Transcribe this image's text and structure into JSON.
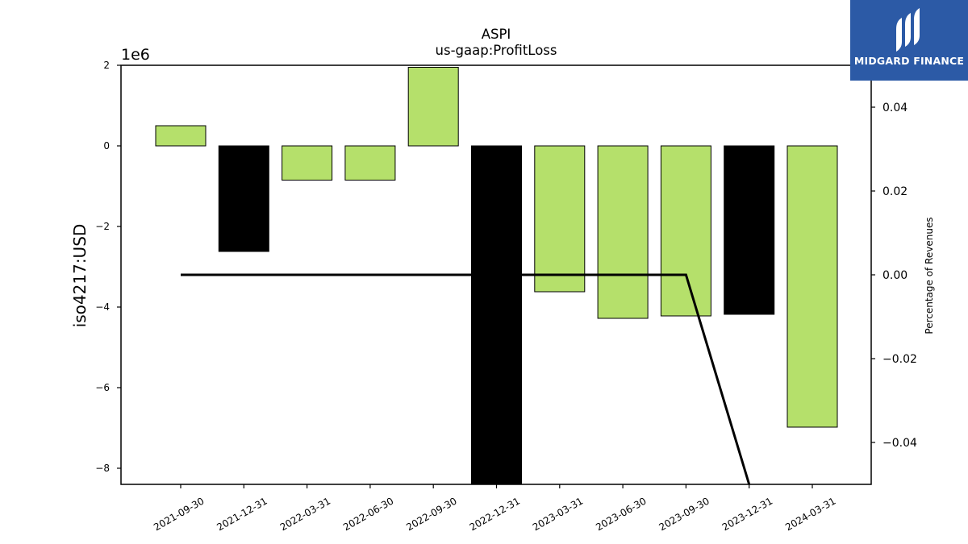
{
  "chart_data": {
    "type": "bar",
    "title": "ASPI",
    "subtitle": "us-gaap:ProfitLoss",
    "ylabel": "iso4217:USD",
    "y2label": "Percentage of Revenues",
    "yscale_label": "1e6",
    "categories": [
      "2021-09-30",
      "2021-12-31",
      "2022-03-31",
      "2022-06-30",
      "2022-09-30",
      "2022-12-31",
      "2023-03-31",
      "2023-06-30",
      "2023-09-30",
      "2023-12-31",
      "2024-03-31"
    ],
    "values": [
      500000,
      -2620000,
      -850000,
      -850000,
      1950000,
      -8400000,
      -3620000,
      -4280000,
      -4220000,
      -4180000,
      -6980000
    ],
    "bar_colors": [
      "#b5e06b",
      "#000000",
      "#b5e06b",
      "#b5e06b",
      "#b5e06b",
      "#000000",
      "#b5e06b",
      "#b5e06b",
      "#b5e06b",
      "#000000",
      "#b5e06b"
    ],
    "ylim": [
      -8400000,
      2000000
    ],
    "yticks": [
      2,
      0,
      -2,
      -4,
      -6,
      -8
    ],
    "yticks_labels": [
      "2",
      "0",
      "−2",
      "−4",
      "−6",
      "−8"
    ],
    "y2lim": [
      -0.05,
      0.05
    ],
    "y2ticks": [
      0.04,
      0.02,
      0.0,
      -0.02,
      -0.04
    ],
    "y2ticks_labels": [
      "0.04",
      "0.02",
      "0.00",
      "−0.02",
      "−0.04"
    ],
    "percentage_line": {
      "x": [
        "2021-09-30",
        "2022-09-30",
        "2022-12-31",
        "2023-03-31",
        "2023-06-30",
        "2023-09-30",
        "2023-12-31"
      ],
      "y": [
        0.0,
        0.0,
        0.0,
        0.0,
        0.0,
        0.0,
        -0.05
      ]
    },
    "grid": false,
    "legend": "none"
  },
  "logo": {
    "text": "MIDGARD FINANCE",
    "icon": "midgard-logo-icon"
  },
  "colors": {
    "positive_bar": "#b5e06b",
    "negative_bar": "#000000",
    "logo_bg": "#2c5aa6"
  }
}
